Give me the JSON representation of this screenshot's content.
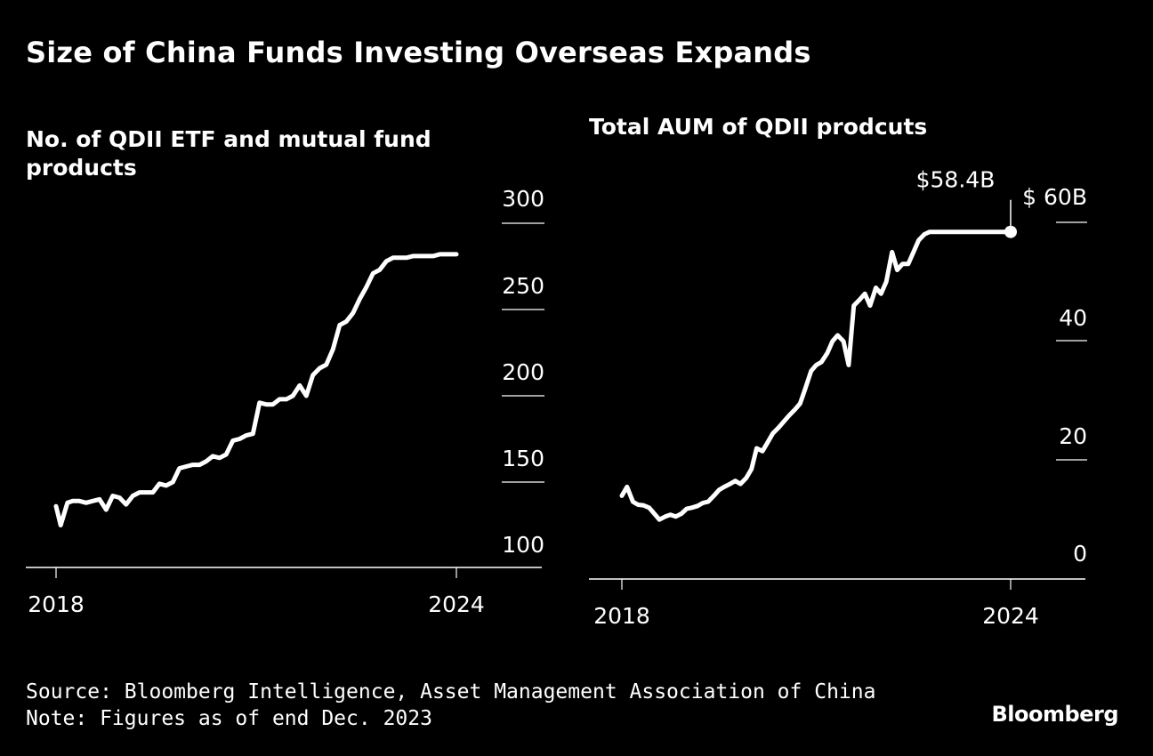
{
  "title": "Size of China Funds Investing Overseas Expands",
  "source": "Source: Bloomberg Intelligence, Asset Management Association of China",
  "note": "Note: Figures as of end Dec. 2023",
  "brand": "Bloomberg",
  "chart_data": [
    {
      "type": "line",
      "title": "No. of QDII ETF and mutual fund products",
      "title_lines": [
        "No. of QDII ETF and mutual fund",
        "products"
      ],
      "xlabel": "",
      "ylabel": "",
      "x_ticks": [
        "2018",
        "2024"
      ],
      "x_range": [
        2018.0,
        2024.0
      ],
      "y_ticks": [
        "300",
        "250",
        "200",
        "150",
        "100"
      ],
      "y_tick_values": [
        300,
        250,
        200,
        150,
        100
      ],
      "ylim": [
        100,
        300
      ],
      "series": [
        {
          "name": "QDII products",
          "x": [
            2018.0,
            2018.07,
            2018.17,
            2018.25,
            2018.35,
            2018.45,
            2018.55,
            2018.65,
            2018.75,
            2018.85,
            2018.95,
            2019.05,
            2019.15,
            2019.25,
            2019.35,
            2019.45,
            2019.55,
            2019.65,
            2019.75,
            2019.85,
            2019.95,
            2020.05,
            2020.15,
            2020.25,
            2020.35,
            2020.45,
            2020.55,
            2020.65,
            2020.75,
            2020.85,
            2020.95,
            2021.05,
            2021.15,
            2021.25,
            2021.35,
            2021.45,
            2021.55,
            2021.65,
            2021.75,
            2021.85,
            2021.95,
            2022.05,
            2022.15,
            2022.25,
            2022.35,
            2022.45,
            2022.55,
            2022.65,
            2022.75,
            2022.85,
            2022.95,
            2023.05,
            2023.15,
            2023.25,
            2023.35,
            2023.45,
            2023.55,
            2023.65,
            2023.75,
            2023.85,
            2023.95,
            2024.0
          ],
          "values": [
            136,
            125,
            138,
            139,
            139,
            138,
            139,
            140,
            134,
            142,
            141,
            137,
            142,
            144,
            144,
            144,
            149,
            148,
            150,
            158,
            159,
            160,
            160,
            162,
            165,
            164,
            166,
            174,
            175,
            177,
            178,
            196,
            195,
            195,
            198,
            198,
            200,
            206,
            200,
            212,
            216,
            218,
            227,
            241,
            243,
            248,
            256,
            263,
            271,
            273,
            278,
            280,
            280,
            280,
            281,
            281,
            281,
            281,
            282,
            282,
            282,
            282
          ]
        }
      ]
    },
    {
      "type": "line",
      "title": "Total AUM of QDII prodcuts",
      "xlabel": "",
      "ylabel": "",
      "x_ticks": [
        "2018",
        "2024"
      ],
      "x_range": [
        2018.0,
        2024.0
      ],
      "y_ticks": [
        "$ 60B",
        "40",
        "20",
        "0"
      ],
      "y_tick_values": [
        60,
        40,
        20,
        0
      ],
      "ylim": [
        0,
        60
      ],
      "annotations": [
        {
          "label": "$58.4B",
          "x": 2024.0,
          "y": 58.4
        }
      ],
      "series": [
        {
          "name": "Total AUM ($B)",
          "x": [
            2018.0,
            2018.08,
            2018.17,
            2018.25,
            2018.33,
            2018.42,
            2018.5,
            2018.58,
            2018.67,
            2018.75,
            2018.83,
            2018.92,
            2019.0,
            2019.08,
            2019.17,
            2019.25,
            2019.33,
            2019.42,
            2019.5,
            2019.58,
            2019.67,
            2019.75,
            2019.83,
            2019.92,
            2020.0,
            2020.08,
            2020.17,
            2020.25,
            2020.33,
            2020.42,
            2020.5,
            2020.58,
            2020.67,
            2020.75,
            2020.83,
            2020.92,
            2021.0,
            2021.08,
            2021.17,
            2021.25,
            2021.33,
            2021.42,
            2021.5,
            2021.58,
            2021.67,
            2021.75,
            2021.83,
            2021.92,
            2022.0,
            2022.08,
            2022.17,
            2022.25,
            2022.33,
            2022.42,
            2022.5,
            2022.58,
            2022.67,
            2022.75,
            2022.83,
            2022.92,
            2023.0,
            2023.08,
            2023.17,
            2023.25,
            2023.33,
            2023.42,
            2023.5,
            2023.58,
            2023.67,
            2023.75,
            2023.83,
            2023.92,
            2024.0
          ],
          "values": [
            14.0,
            15.5,
            13.0,
            12.5,
            12.4,
            12.0,
            11.0,
            10.0,
            10.5,
            10.8,
            10.5,
            11.0,
            11.8,
            12.0,
            12.3,
            12.8,
            13.0,
            14.0,
            15.0,
            15.5,
            16.0,
            16.5,
            16.0,
            17.0,
            18.5,
            22.0,
            21.5,
            23.0,
            24.5,
            25.5,
            26.5,
            27.5,
            28.5,
            29.5,
            32.0,
            35.0,
            36.0,
            36.5,
            38.0,
            40.0,
            41.0,
            40.0,
            36.0,
            46.0,
            47.0,
            48.0,
            46.0,
            49.0,
            48.0,
            50.0,
            55.0,
            52.0,
            53.0,
            53.0,
            55.0,
            57.0,
            58.0,
            58.4,
            58.4,
            58.4,
            58.4,
            58.4,
            58.4,
            58.4,
            58.4,
            58.4,
            58.4,
            58.4,
            58.4,
            58.4,
            58.4,
            58.4,
            58.4
          ]
        }
      ]
    }
  ]
}
